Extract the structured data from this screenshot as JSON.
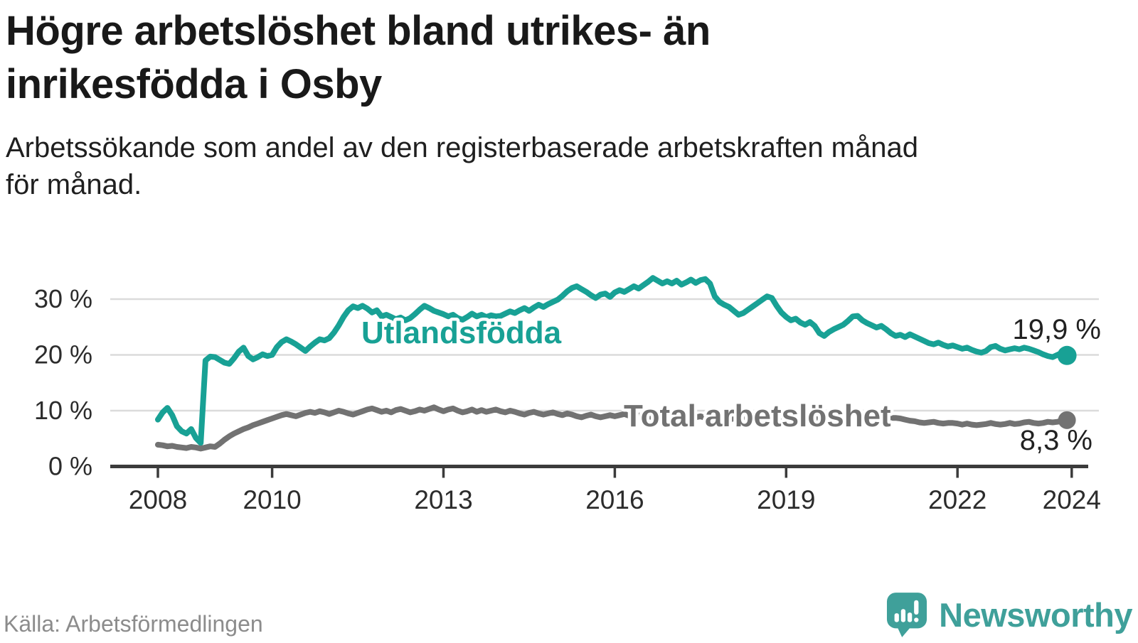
{
  "header": {
    "title_line1": "Högre arbetslöshet bland utrikes- än",
    "title_line2": "inrikesfödda i Osby",
    "subtitle_line1": "Arbetssökande som andel av den registerbaserade arbetskraften månad",
    "subtitle_line2": "för månad."
  },
  "footer": {
    "source": "Källa: Arbetsförmedlingen",
    "logo_text": "Newsworthy"
  },
  "colors": {
    "series_foreign": "#18a195",
    "series_total": "#727272",
    "grid": "#dbdbdb",
    "axis": "#3b3b3b",
    "tick_label": "#2c2c2c",
    "annotation": "#212121",
    "logo": "#3fa09a",
    "background": "#ffffff"
  },
  "chart_data": {
    "type": "line",
    "title": "Högre arbetslöshet bland utrikes- än inrikesfödda i Osby",
    "subtitle": "Arbetssökande som andel av den registerbaserade arbetskraften månad för månad.",
    "unit": "%",
    "frequency": "monthly",
    "x_start_year": 2008,
    "x_end": "Dec 2023",
    "grid": "horizontal",
    "legend_position": "inline-labels",
    "x_ticks": [
      2008,
      2010,
      2013,
      2016,
      2019,
      2022,
      2024
    ],
    "y_ticks": [
      0,
      10,
      20,
      30
    ],
    "y_tick_labels": [
      "0 %",
      "10 %",
      "20 %",
      "30 %"
    ],
    "ylim": [
      0,
      35.5
    ],
    "series": [
      {
        "name": "Utlandsfödda",
        "color": "#18a195",
        "end_label": "19,9 %",
        "end_value": 19.9,
        "values": [
          8.4,
          9.7,
          10.5,
          9.2,
          7.2,
          6.3,
          5.9,
          6.7,
          5.1,
          4.2,
          19.0,
          19.7,
          19.6,
          19.1,
          18.6,
          18.4,
          19.4,
          20.6,
          21.3,
          19.8,
          19.2,
          19.6,
          20.1,
          19.8,
          20.0,
          21.4,
          22.3,
          22.8,
          22.4,
          21.9,
          21.3,
          20.7,
          21.5,
          22.2,
          22.8,
          22.6,
          23.0,
          24.0,
          25.3,
          26.8,
          28.0,
          28.7,
          28.4,
          28.8,
          28.3,
          27.6,
          28.0,
          26.9,
          27.2,
          26.8,
          26.4,
          26.7,
          26.2,
          26.6,
          27.3,
          28.1,
          28.8,
          28.4,
          27.9,
          27.6,
          27.3,
          26.9,
          27.2,
          26.6,
          26.3,
          26.8,
          27.4,
          26.9,
          27.2,
          26.8,
          27.1,
          26.9,
          27.0,
          27.4,
          27.8,
          27.5,
          28.0,
          28.4,
          27.9,
          28.5,
          29.0,
          28.6,
          29.1,
          29.5,
          29.9,
          30.6,
          31.4,
          32.0,
          32.3,
          31.8,
          31.3,
          30.7,
          30.2,
          30.8,
          31.0,
          30.4,
          31.2,
          31.6,
          31.3,
          31.8,
          32.3,
          31.9,
          32.5,
          33.1,
          33.8,
          33.3,
          32.8,
          33.2,
          32.8,
          33.3,
          32.6,
          33.0,
          33.5,
          32.9,
          33.4,
          33.6,
          32.8,
          30.5,
          29.5,
          29.0,
          28.6,
          27.9,
          27.2,
          27.5,
          28.1,
          28.7,
          29.3,
          29.9,
          30.5,
          30.2,
          28.8,
          27.6,
          26.8,
          26.2,
          26.5,
          25.8,
          25.4,
          25.9,
          25.2,
          23.9,
          23.4,
          24.1,
          24.6,
          25.0,
          25.4,
          26.1,
          26.9,
          27.0,
          26.2,
          25.7,
          25.3,
          24.9,
          25.2,
          24.6,
          23.9,
          23.4,
          23.6,
          23.2,
          23.7,
          23.3,
          22.9,
          22.5,
          22.1,
          21.9,
          22.2,
          21.8,
          21.5,
          21.7,
          21.4,
          21.1,
          21.3,
          20.9,
          20.6,
          20.4,
          20.7,
          21.4,
          21.6,
          21.1,
          20.8,
          21.0,
          21.2,
          21.0,
          21.3,
          21.1,
          20.8,
          20.5,
          20.1,
          19.8,
          19.6,
          20.0,
          20.4,
          19.9
        ]
      },
      {
        "name": "Total arbetslöshet",
        "color": "#727272",
        "end_label": "8,3 %",
        "end_value": 8.3,
        "values": [
          3.9,
          3.8,
          3.6,
          3.7,
          3.5,
          3.4,
          3.3,
          3.5,
          3.4,
          3.2,
          3.4,
          3.6,
          3.5,
          4.1,
          4.8,
          5.4,
          5.9,
          6.3,
          6.7,
          7.0,
          7.4,
          7.7,
          8.0,
          8.3,
          8.6,
          8.9,
          9.2,
          9.4,
          9.2,
          9.0,
          9.3,
          9.6,
          9.8,
          9.6,
          9.9,
          9.7,
          9.4,
          9.7,
          10.0,
          9.8,
          9.5,
          9.3,
          9.6,
          9.9,
          10.2,
          10.4,
          10.1,
          9.8,
          10.0,
          9.7,
          10.1,
          10.3,
          10.0,
          9.7,
          9.9,
          10.2,
          10.0,
          10.3,
          10.6,
          10.2,
          9.9,
          10.2,
          10.4,
          10.0,
          9.7,
          9.9,
          10.2,
          9.8,
          10.1,
          9.8,
          10.0,
          10.2,
          9.9,
          9.7,
          10.0,
          9.8,
          9.5,
          9.3,
          9.6,
          9.8,
          9.5,
          9.3,
          9.5,
          9.7,
          9.4,
          9.2,
          9.5,
          9.3,
          9.0,
          8.8,
          9.1,
          9.3,
          9.0,
          8.8,
          9.0,
          9.2,
          9.0,
          9.2,
          9.4,
          9.1,
          8.9,
          9.1,
          9.3,
          9.0,
          8.8,
          9.0,
          9.2,
          8.9,
          8.7,
          8.9,
          9.1,
          8.8,
          8.6,
          8.8,
          9.0,
          8.7,
          8.5,
          8.7,
          8.9,
          8.6,
          8.4,
          8.6,
          8.8,
          8.5,
          8.3,
          8.5,
          8.7,
          8.4,
          8.2,
          8.4,
          8.6,
          8.5,
          8.3,
          8.5,
          8.7,
          8.4,
          8.2,
          8.4,
          8.6,
          8.3,
          8.1,
          8.3,
          8.5,
          8.7,
          8.6,
          8.8,
          9.1,
          9.2,
          8.9,
          8.7,
          8.9,
          9.0,
          8.8,
          8.6,
          8.7,
          8.7,
          8.6,
          8.4,
          8.2,
          8.1,
          7.9,
          7.8,
          7.9,
          8.0,
          7.8,
          7.7,
          7.8,
          7.8,
          7.7,
          7.5,
          7.7,
          7.5,
          7.4,
          7.5,
          7.6,
          7.8,
          7.6,
          7.5,
          7.6,
          7.8,
          7.6,
          7.7,
          7.9,
          8.0,
          7.8,
          7.7,
          7.8,
          8.0,
          7.9,
          8.0,
          8.2,
          8.3
        ]
      }
    ]
  }
}
